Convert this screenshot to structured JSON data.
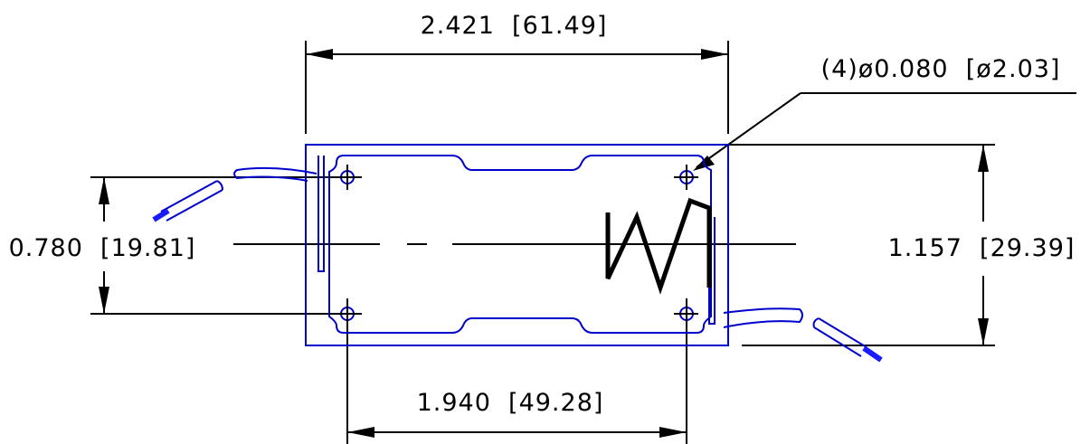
{
  "dimensions": {
    "overall_width": "2.421  [61.49]",
    "hole_callout": "(4)ø0.080  [ø2.03]",
    "hole_spacing_vertical": "0.780  [19.81]",
    "overall_height": "1.157  [29.39]",
    "hole_spacing_horizontal": "1.940  [49.28]"
  },
  "colors": {
    "part_outline": "#0000cc",
    "wire_tip": "#1a1aff",
    "dimension_lines": "#000000"
  },
  "icons": {
    "heater_symbol": "zigzag-resistor-icon"
  }
}
